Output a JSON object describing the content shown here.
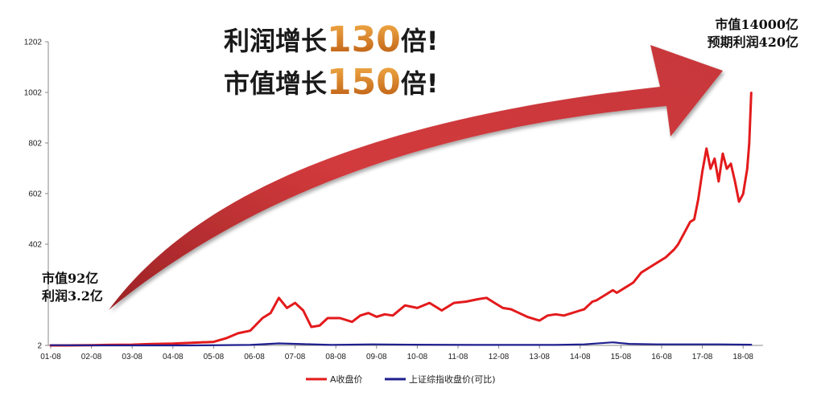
{
  "chart_data": {
    "type": "line",
    "title": "",
    "xlabel": "",
    "ylabel": "",
    "y_ticks": [
      "1202",
      "1002",
      "802",
      "602",
      "402",
      "2"
    ],
    "ylim": [
      2,
      1202
    ],
    "x_ticks": [
      "01-08",
      "02-08",
      "03-08",
      "04-08",
      "05-08",
      "06-08",
      "07-08",
      "08-08",
      "09-08",
      "10-08",
      "11-08",
      "12-08",
      "13-08",
      "14-08",
      "15-08",
      "16-08",
      "17-08",
      "18-08"
    ],
    "legend_position": "bottom",
    "grid": false,
    "series": [
      {
        "name": "A收盘价",
        "color": "#e31a1c",
        "x": [
          2001.6,
          2002.0,
          2002.6,
          2003.0,
          2003.6,
          2004.0,
          2004.6,
          2005.0,
          2005.6,
          2005.9,
          2006.2,
          2006.5,
          2006.8,
          2007.0,
          2007.2,
          2007.4,
          2007.6,
          2007.8,
          2008.0,
          2008.2,
          2008.4,
          2008.7,
          2009.0,
          2009.2,
          2009.4,
          2009.6,
          2009.8,
          2010.0,
          2010.3,
          2010.6,
          2010.9,
          2011.2,
          2011.5,
          2011.8,
          2012.1,
          2012.3,
          2012.5,
          2012.7,
          2012.9,
          2013.1,
          2013.3,
          2013.5,
          2013.6,
          2013.8,
          2014.0,
          2014.2,
          2014.4,
          2014.6,
          2014.7,
          2014.8,
          2014.9,
          2015.0,
          2015.2,
          2015.4,
          2015.5,
          2015.7,
          2015.9,
          2016.1,
          2016.3,
          2016.5,
          2016.7,
          2016.9,
          2017.0,
          2017.1,
          2017.2,
          2017.3,
          2017.4,
          2017.5,
          2017.6,
          2017.7,
          2017.8,
          2017.9,
          2018.0,
          2018.1,
          2018.2,
          2018.3,
          2018.4,
          2018.5,
          2018.6,
          2018.7,
          2018.75,
          2018.8
        ],
        "values": [
          2,
          2,
          3,
          4,
          5,
          7,
          9,
          12,
          16,
          30,
          50,
          60,
          110,
          130,
          190,
          150,
          170,
          140,
          75,
          80,
          110,
          110,
          95,
          120,
          130,
          115,
          125,
          120,
          160,
          150,
          170,
          140,
          170,
          175,
          185,
          190,
          170,
          150,
          145,
          130,
          115,
          105,
          100,
          120,
          125,
          120,
          130,
          140,
          145,
          160,
          175,
          180,
          200,
          220,
          210,
          230,
          250,
          290,
          310,
          330,
          350,
          380,
          400,
          430,
          460,
          490,
          500,
          580,
          690,
          780,
          700,
          740,
          650,
          760,
          700,
          720,
          650,
          570,
          600,
          700,
          800,
          1000
        ]
      },
      {
        "name": "上证综指收盘价(可比)",
        "color": "#1f1f8f",
        "x": [
          2001.6,
          2003.0,
          2005.0,
          2006.5,
          2007.2,
          2007.8,
          2008.5,
          2009.5,
          2010.5,
          2012.0,
          2013.0,
          2014.0,
          2014.7,
          2015.4,
          2015.8,
          2016.5,
          2017.5,
          2018.0,
          2018.8
        ],
        "values": [
          3,
          2,
          2,
          4,
          10,
          7,
          4,
          6,
          5,
          4,
          4,
          4,
          6,
          14,
          8,
          6,
          6,
          6,
          5
        ]
      }
    ]
  },
  "headline": {
    "line1_prefix": "利润增长",
    "line1_number": "130",
    "line1_suffix": "倍!",
    "line2_prefix": "市值增长",
    "line2_number": "150",
    "line2_suffix": "倍!"
  },
  "annotations": {
    "start_line1": "市值92亿",
    "start_line2": "利润3.2亿",
    "end_line1": "市值14000亿",
    "end_line2": "预期利润420亿"
  },
  "colors": {
    "arrow_fill": "#d23a3c",
    "arrow_dark": "#8e1f22",
    "number_top": "#f2a43a",
    "number_bottom": "#b8560e",
    "axis": "#888888"
  }
}
